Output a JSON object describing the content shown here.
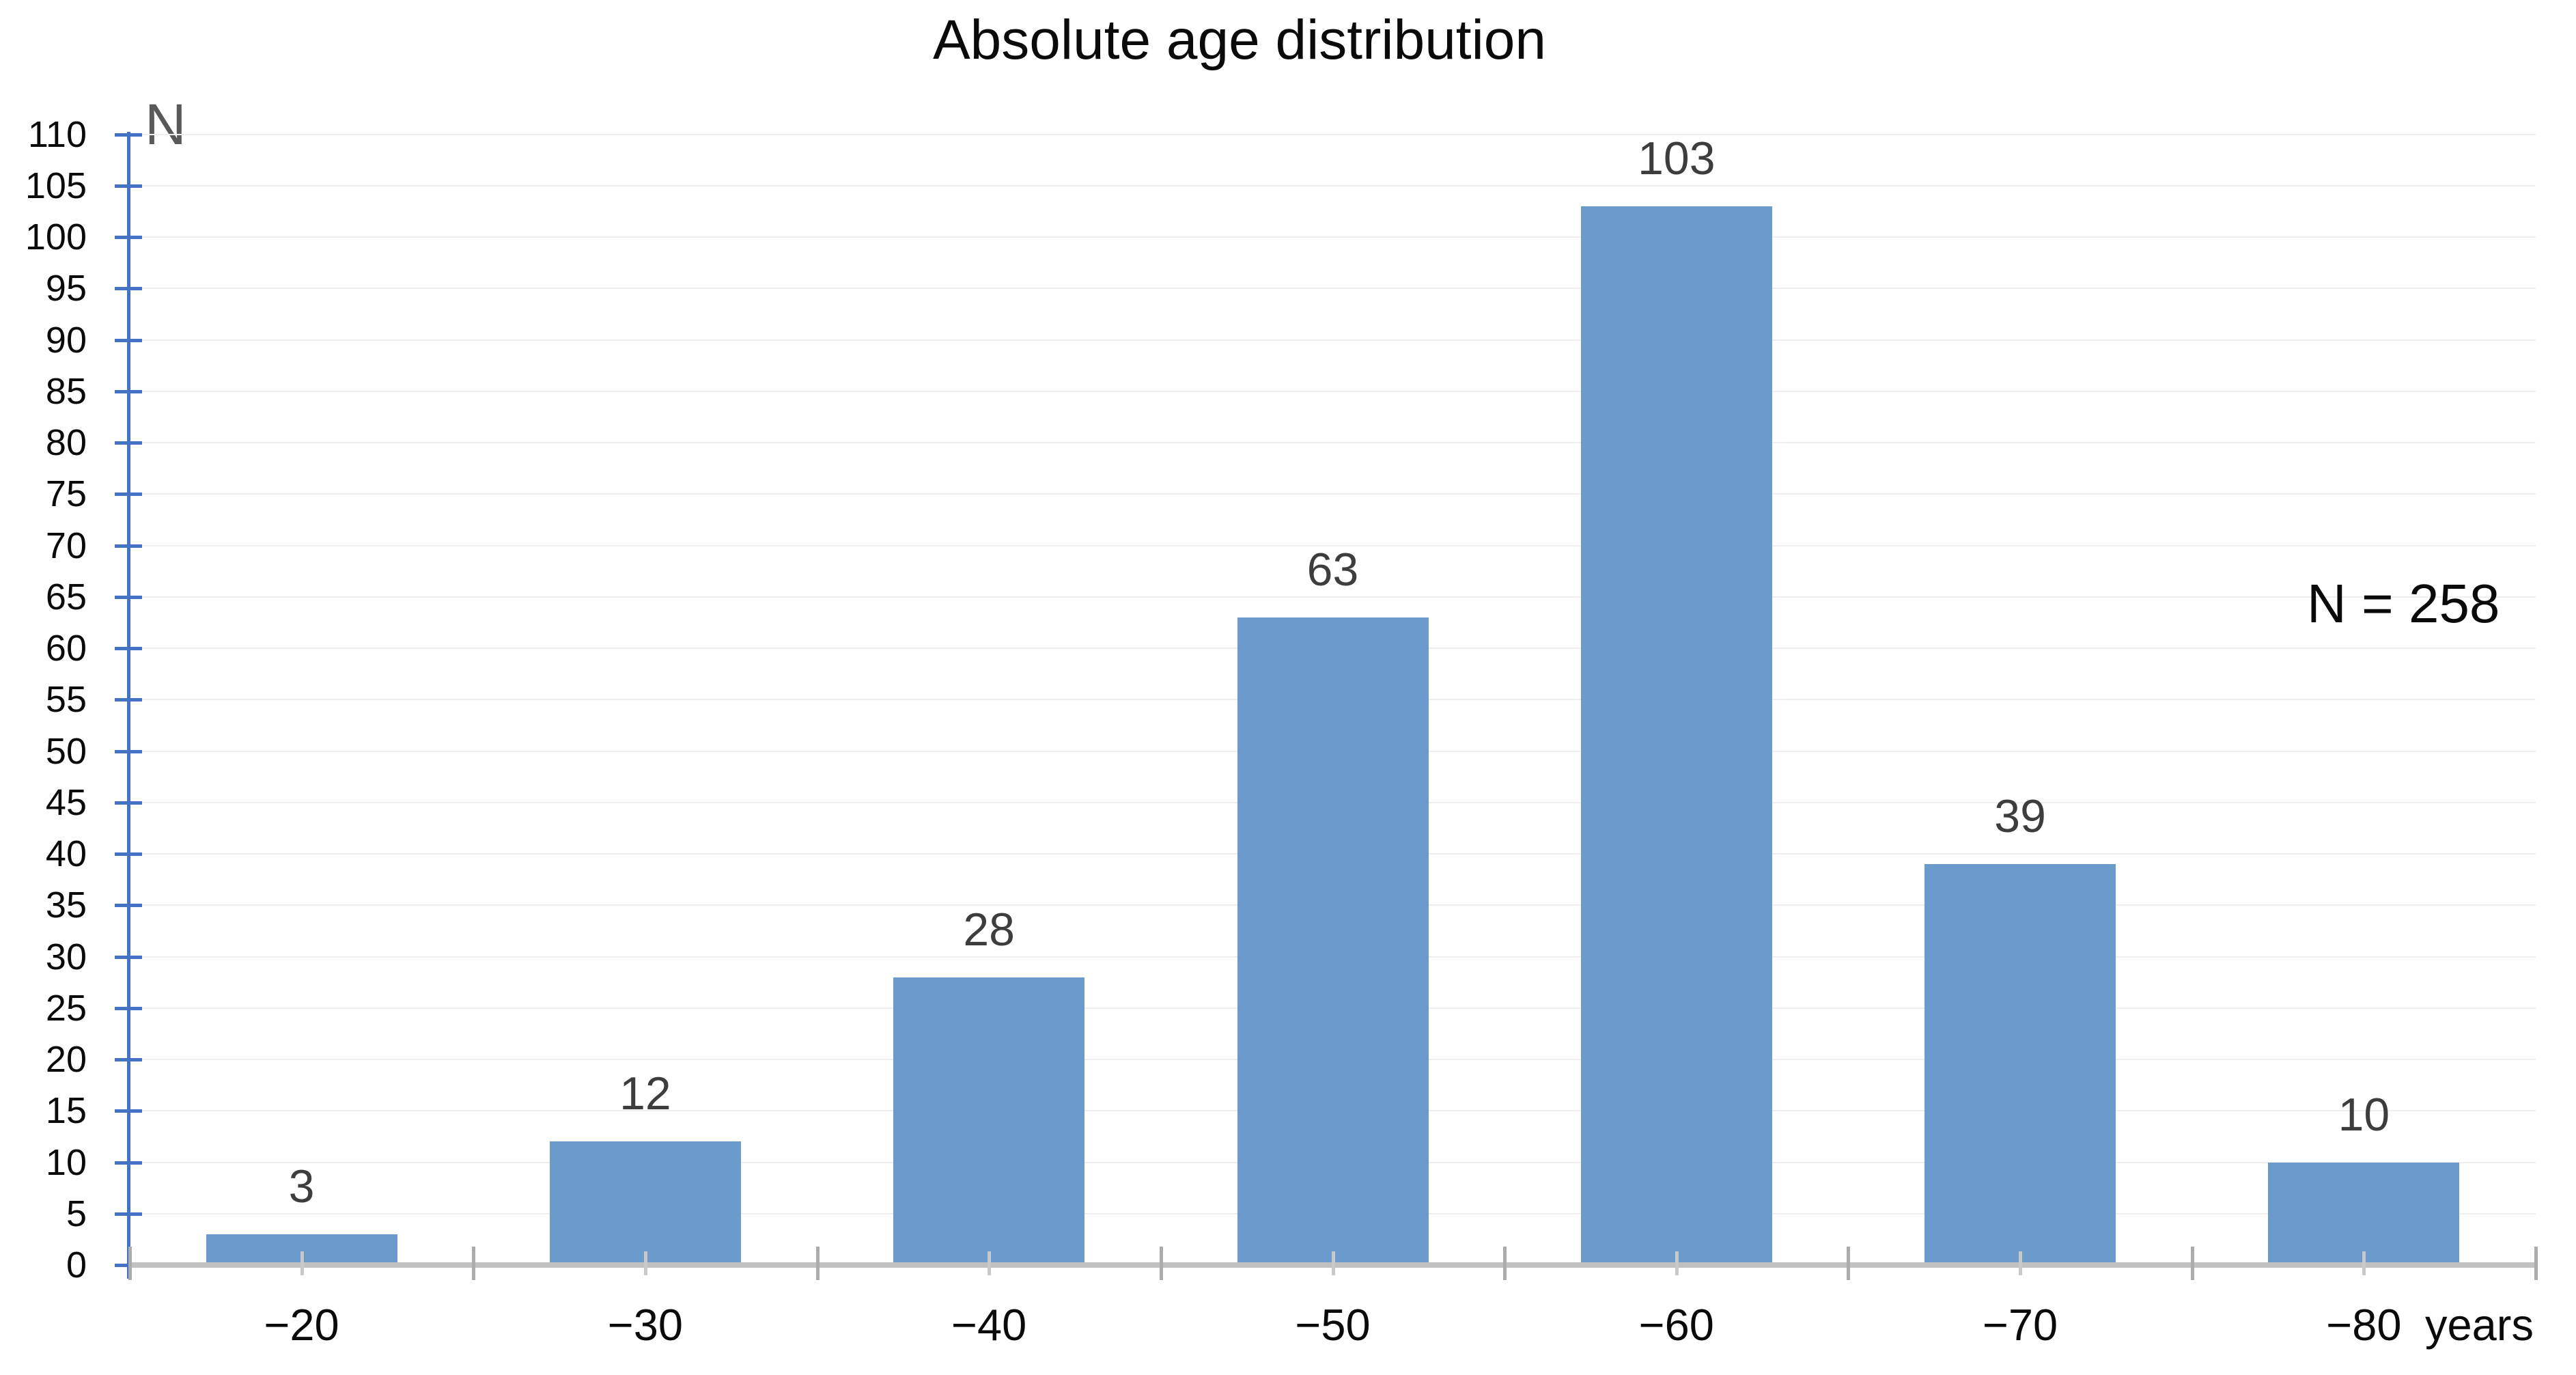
{
  "title": "Absolute age distribution",
  "y_axis_title": "N",
  "x_axis_title": "years",
  "annotation": "N = 258",
  "colors": {
    "bar": "#6B9BCD",
    "y_axis": "#4472C4",
    "x_axis_line": "#C1C1C1",
    "x_major_tick": "#ACACAC",
    "x_minor_tick": "#C8C8C8",
    "gridline": "#EFEFEF",
    "value_label": "#3D3D3D",
    "axis_title": "#595959",
    "text": "#0A0A0A"
  },
  "chart_data": {
    "type": "bar",
    "title": "Absolute age distribution",
    "categories": [
      "−20",
      "−30",
      "−40",
      "−50",
      "−60",
      "−70",
      "−80"
    ],
    "values": [
      3,
      12,
      28,
      63,
      103,
      39,
      10
    ],
    "value_labels": [
      "3",
      "12",
      "28",
      "63",
      "103",
      "39",
      "10"
    ],
    "xlabel": "years",
    "ylabel": "N",
    "ylim": [
      0,
      110
    ],
    "ytick_step": 5,
    "yticks": [
      0,
      5,
      10,
      15,
      20,
      25,
      30,
      35,
      40,
      45,
      50,
      55,
      60,
      65,
      70,
      75,
      80,
      85,
      90,
      95,
      100,
      105,
      110
    ],
    "grid": "horizontal gridlines every 5 units, light gray",
    "legend": "none",
    "annotation": "N = 258",
    "total_n": 258
  }
}
